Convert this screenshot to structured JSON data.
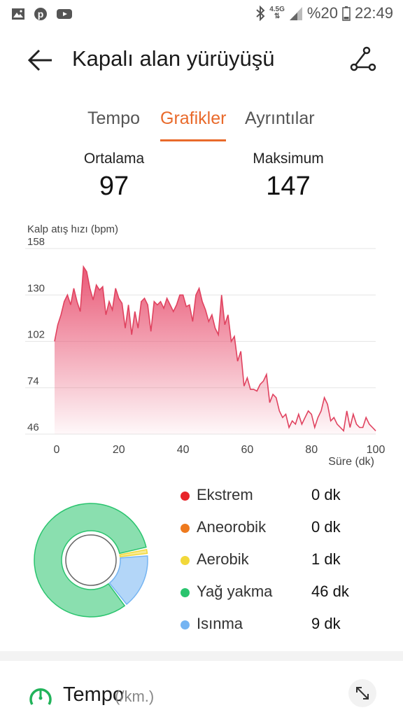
{
  "status_bar": {
    "icons_left": [
      "image-icon",
      "pinterest-icon",
      "youtube-icon"
    ],
    "network": "4.5G",
    "battery": "%20",
    "time": "22:49"
  },
  "header": {
    "title": "Kapalı alan yürüyüşü"
  },
  "tabs": [
    {
      "label": "Tempo",
      "active": false
    },
    {
      "label": "Grafikler",
      "active": true
    },
    {
      "label": "Ayrıntılar",
      "active": false
    }
  ],
  "stats": {
    "average": {
      "label": "Ortalama",
      "value": "97"
    },
    "max": {
      "label": "Maksimum",
      "value": "147"
    }
  },
  "chart_data": {
    "type": "area",
    "ylabel": "Kalp atış hızı (bpm)",
    "xlabel": "Süre (dk)",
    "yticks": [
      "158",
      "130",
      "102",
      "74",
      "46"
    ],
    "xticks": [
      "0",
      "20",
      "40",
      "60",
      "80",
      "100"
    ],
    "xlim": [
      0,
      100
    ],
    "ylim": [
      46,
      158
    ],
    "color": "#e8506f",
    "x": [
      0,
      1,
      2,
      3,
      4,
      5,
      6,
      7,
      8,
      9,
      10,
      11,
      12,
      13,
      14,
      15,
      16,
      17,
      18,
      19,
      20,
      21,
      22,
      23,
      24,
      25,
      26,
      27,
      28,
      29,
      30,
      31,
      32,
      33,
      34,
      35,
      36,
      37,
      38,
      39,
      40,
      41,
      42,
      43,
      44,
      45,
      46,
      47,
      48,
      49,
      50,
      51,
      52,
      53,
      54,
      55,
      56,
      57,
      58,
      59,
      60,
      61,
      62,
      63,
      64,
      65,
      66,
      67,
      68,
      69,
      70,
      71,
      72,
      73,
      74,
      75,
      76,
      77,
      78,
      79,
      80,
      81,
      82,
      83,
      84,
      85,
      86,
      87,
      88,
      89,
      90,
      91,
      92,
      93,
      94,
      95,
      96,
      97,
      98,
      99,
      100
    ],
    "y": [
      102,
      112,
      118,
      126,
      130,
      124,
      134,
      126,
      120,
      147,
      144,
      134,
      127,
      136,
      133,
      135,
      118,
      126,
      121,
      134,
      128,
      125,
      110,
      124,
      106,
      120,
      110,
      126,
      128,
      124,
      108,
      126,
      124,
      126,
      122,
      128,
      124,
      120,
      124,
      130,
      130,
      123,
      124,
      114,
      130,
      134,
      126,
      121,
      114,
      118,
      110,
      106,
      130,
      112,
      118,
      102,
      105,
      90,
      96,
      75,
      80,
      73,
      73,
      72,
      76,
      78,
      82,
      65,
      70,
      68,
      60,
      56,
      58,
      50,
      54,
      52,
      58,
      52,
      56,
      60,
      58,
      50,
      56,
      60,
      68,
      64,
      54,
      56,
      52,
      50,
      48,
      60,
      50,
      58,
      52,
      50,
      50,
      56,
      52,
      50,
      48
    ]
  },
  "zones": [
    {
      "name": "Ekstrem",
      "value": "0 dk",
      "minutes": 0,
      "color": "#e8242a"
    },
    {
      "name": "Aneorobik",
      "value": "0 dk",
      "minutes": 0,
      "color": "#ee7a1e"
    },
    {
      "name": "Aerobik",
      "value": "1 dk",
      "minutes": 1,
      "color": "#f2d83a"
    },
    {
      "name": "Yağ yakma",
      "value": "46 dk",
      "minutes": 46,
      "color": "#2ac46e"
    },
    {
      "name": "Isınma",
      "value": "9 dk",
      "minutes": 9,
      "color": "#74b4f2"
    }
  ],
  "tempo_section": {
    "title": "Tempo",
    "unit": "(/km.)"
  }
}
